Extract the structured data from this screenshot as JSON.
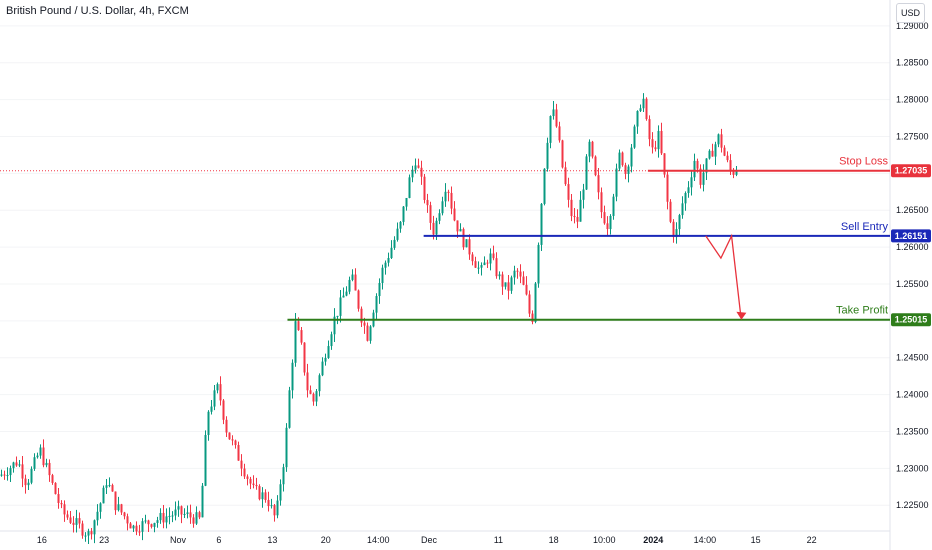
{
  "header": {
    "title": "British Pound / U.S. Dollar, 4h, FXCM",
    "currency_button": "USD"
  },
  "colors": {
    "up": "#089981",
    "down": "#f23645",
    "stop_loss": "#e8323c",
    "sell_entry": "#1a28b8",
    "take_profit": "#2e7d1a",
    "projection": "#e8323c",
    "last_price_dotted": "#f23645"
  },
  "chart_data": {
    "type": "candlestick",
    "title": "British Pound / U.S. Dollar, 4h, FXCM",
    "ylim": [
      1.2215,
      1.2935
    ],
    "y_ticks": [
      "1.29000",
      "1.28500",
      "1.28000",
      "1.27500",
      "1.27000",
      "1.26500",
      "1.26000",
      "1.25500",
      "1.25000",
      "1.24500",
      "1.24000",
      "1.23500",
      "1.23000",
      "1.22500"
    ],
    "x_ticks": [
      "16",
      "23",
      "Nov",
      "6",
      "13",
      "20",
      "14:00",
      "Dec",
      "11",
      "18",
      "10:00",
      "2024",
      "14:00",
      "15",
      "22"
    ],
    "levels": [
      {
        "name": "Stop Loss",
        "value": 1.27035,
        "label": "1.27035"
      },
      {
        "name": "Sell Entry",
        "value": 1.26151,
        "label": "1.26151"
      },
      {
        "name": "Take Profit",
        "value": 1.25015,
        "label": "1.25015"
      }
    ],
    "projection": [
      1.26151,
      1.2585,
      1.26151,
      1.25015
    ],
    "price_path": [
      [
        0.0,
        1.229
      ],
      [
        0.02,
        1.231
      ],
      [
        0.03,
        1.228
      ],
      [
        0.045,
        1.2325
      ],
      [
        0.07,
        1.224
      ],
      [
        0.1,
        1.221
      ],
      [
        0.115,
        1.226
      ],
      [
        0.12,
        1.2285
      ],
      [
        0.13,
        1.225
      ],
      [
        0.15,
        1.222
      ],
      [
        0.2,
        1.224
      ],
      [
        0.225,
        1.223
      ],
      [
        0.233,
        1.2375
      ],
      [
        0.245,
        1.241
      ],
      [
        0.255,
        1.235
      ],
      [
        0.27,
        1.231
      ],
      [
        0.285,
        1.227
      ],
      [
        0.3,
        1.226
      ],
      [
        0.31,
        1.223
      ],
      [
        0.315,
        1.228
      ],
      [
        0.32,
        1.232
      ],
      [
        0.325,
        1.24
      ],
      [
        0.332,
        1.2495
      ],
      [
        0.338,
        1.247
      ],
      [
        0.345,
        1.241
      ],
      [
        0.352,
        1.239
      ],
      [
        0.36,
        1.243
      ],
      [
        0.368,
        1.247
      ],
      [
        0.375,
        1.25
      ],
      [
        0.385,
        1.253
      ],
      [
        0.395,
        1.256
      ],
      [
        0.405,
        1.251
      ],
      [
        0.413,
        1.248
      ],
      [
        0.42,
        1.252
      ],
      [
        0.43,
        1.257
      ],
      [
        0.44,
        1.26
      ],
      [
        0.45,
        1.263
      ],
      [
        0.46,
        1.269
      ],
      [
        0.467,
        1.272
      ],
      [
        0.475,
        1.268
      ],
      [
        0.482,
        1.264
      ],
      [
        0.488,
        1.262
      ],
      [
        0.495,
        1.266
      ],
      [
        0.502,
        1.269
      ],
      [
        0.51,
        1.264
      ],
      [
        0.52,
        1.261
      ],
      [
        0.53,
        1.259
      ],
      [
        0.54,
        1.2565
      ],
      [
        0.55,
        1.259
      ],
      [
        0.56,
        1.256
      ],
      [
        0.57,
        1.254
      ],
      [
        0.58,
        1.257
      ],
      [
        0.59,
        1.254
      ],
      [
        0.595,
        1.251
      ],
      [
        0.598,
        1.25
      ],
      [
        0.602,
        1.256
      ],
      [
        0.607,
        1.264
      ],
      [
        0.613,
        1.273
      ],
      [
        0.62,
        1.279
      ],
      [
        0.626,
        1.276
      ],
      [
        0.633,
        1.27
      ],
      [
        0.64,
        1.265
      ],
      [
        0.648,
        1.263
      ],
      [
        0.655,
        1.268
      ],
      [
        0.662,
        1.274
      ],
      [
        0.668,
        1.27
      ],
      [
        0.675,
        1.265
      ],
      [
        0.683,
        1.263
      ],
      [
        0.69,
        1.268
      ],
      [
        0.697,
        1.273
      ],
      [
        0.703,
        1.27
      ],
      [
        0.71,
        1.274
      ],
      [
        0.717,
        1.278
      ],
      [
        0.722,
        1.281
      ],
      [
        0.727,
        1.276
      ],
      [
        0.733,
        1.273
      ],
      [
        0.74,
        1.275
      ],
      [
        0.745,
        1.271
      ],
      [
        0.75,
        1.266
      ],
      [
        0.755,
        1.262
      ],
      [
        0.76,
        1.262
      ],
      [
        0.767,
        1.266
      ],
      [
        0.775,
        1.269
      ],
      [
        0.78,
        1.272
      ],
      [
        0.787,
        1.269
      ],
      [
        0.793,
        1.271
      ],
      [
        0.8,
        1.273
      ],
      [
        0.808,
        1.275
      ],
      [
        0.815,
        1.272
      ],
      [
        0.822,
        1.27
      ],
      [
        0.83,
        1.271
      ]
    ]
  },
  "level_labels": {
    "stop_loss": "Stop Loss",
    "sell_entry": "Sell Entry",
    "take_profit": "Take Profit",
    "stop_loss_price": "1.27035",
    "sell_entry_price": "1.26151",
    "take_profit_price": "1.25015"
  }
}
